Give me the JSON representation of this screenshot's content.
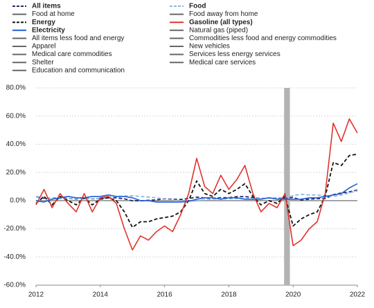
{
  "chart_data": {
    "type": "line",
    "x": [
      2012,
      2012.25,
      2012.5,
      2012.75,
      2013,
      2013.25,
      2013.5,
      2013.75,
      2014,
      2014.25,
      2014.5,
      2014.75,
      2015,
      2015.25,
      2015.5,
      2015.75,
      2016,
      2016.25,
      2016.5,
      2016.75,
      2017,
      2017.25,
      2017.5,
      2017.75,
      2018,
      2018.25,
      2018.5,
      2018.75,
      2019,
      2019.25,
      2019.5,
      2019.75,
      2020,
      2020.25,
      2020.5,
      2020.75,
      2021,
      2021.25,
      2021.5,
      2021.75,
      2022
    ],
    "xlim": [
      2012,
      2022
    ],
    "xticks": [
      2012,
      2014,
      2016,
      2018,
      2020,
      2022
    ],
    "ylim": [
      -60,
      80
    ],
    "yticks": [
      {
        "value": -60,
        "label": "-60.0%"
      },
      {
        "value": -40,
        "label": "-40.0%"
      },
      {
        "value": -20,
        "label": "-20.0%"
      },
      {
        "value": 0,
        "label": "0.0%"
      },
      {
        "value": 20,
        "label": "20.0%"
      },
      {
        "value": 40,
        "label": "40.0%"
      },
      {
        "value": 60,
        "label": "60.0%"
      },
      {
        "value": 80,
        "label": "80.0%"
      }
    ],
    "grid": true,
    "shade_x": [
      2019.72,
      2019.9
    ],
    "series": [
      {
        "name": "All items",
        "color": "#1f2a6b",
        "dash": true,
        "values": [
          2.9,
          1.7,
          1.7,
          1.8,
          1.6,
          1.1,
          2.0,
          1.2,
          1.6,
          2.1,
          2.0,
          1.3,
          -0.1,
          -0.1,
          0.2,
          0.5,
          1.3,
          1.0,
          0.8,
          1.5,
          2.5,
          1.9,
          1.7,
          2.1,
          2.1,
          2.8,
          2.9,
          2.2,
          1.5,
          1.9,
          1.6,
          1.7,
          2.3,
          0.3,
          1.0,
          1.4,
          1.4,
          4.2,
          5.4,
          6.2,
          7.5
        ]
      },
      {
        "name": "Food",
        "color": "#8fb4e3",
        "dash": true,
        "values": [
          3,
          2.5,
          1.5,
          1.5,
          1.5,
          1.4,
          1.5,
          1.3,
          1.4,
          2.5,
          3,
          3.2,
          3.4,
          3,
          2.5,
          2,
          1.2,
          0.5,
          0,
          -0.2,
          -0.2,
          0.5,
          1,
          1.5,
          1.3,
          1.5,
          1.4,
          1.5,
          1.6,
          1.8,
          2,
          2.1,
          3.5,
          4.5,
          4,
          4,
          3.5,
          3,
          4,
          5.5,
          7
        ]
      },
      {
        "name": "Food at home",
        "color": "#666666"
      },
      {
        "name": "Food away from home",
        "color": "#666666"
      },
      {
        "name": "Energy",
        "color": "#111111",
        "dash": true,
        "values": [
          -2,
          3,
          -3,
          3,
          0,
          -3,
          2,
          -3,
          1,
          2,
          0,
          -8,
          -19,
          -15,
          -15,
          -13,
          -12,
          -11,
          -8,
          0,
          14,
          5,
          3,
          8,
          5,
          8,
          12,
          3,
          -3,
          0,
          -2,
          3,
          -18,
          -13,
          -10,
          -8,
          3,
          27,
          25,
          32,
          33
        ]
      },
      {
        "name": "Gasoline (all types)",
        "color": "#e0322b",
        "values": [
          -3,
          8,
          -5,
          5,
          -2,
          -8,
          5,
          -8,
          2,
          3,
          -2,
          -20,
          -35,
          -25,
          -28,
          -22,
          -18,
          -22,
          -10,
          5,
          30,
          10,
          5,
          18,
          8,
          15,
          25,
          5,
          -8,
          -2,
          -5,
          5,
          -32,
          -28,
          -20,
          -15,
          5,
          55,
          42,
          58,
          48
        ]
      },
      {
        "name": "Electricity",
        "color": "#1f5fd6",
        "values": [
          0,
          -1,
          1,
          2,
          3,
          2,
          2,
          3,
          3,
          4,
          3,
          3,
          2,
          0,
          0,
          -1,
          -1,
          -1,
          -1,
          -0.5,
          1,
          2,
          2,
          1,
          2,
          2,
          1,
          1,
          1,
          2,
          1,
          1,
          1,
          1,
          2,
          2,
          3,
          4,
          5,
          9,
          12
        ]
      },
      {
        "name": "Natural gas (piped)",
        "color": "#666666"
      },
      {
        "name": "All items less food and energy",
        "color": "#666666"
      },
      {
        "name": "Commodities less food and energy commodities",
        "color": "#666666"
      },
      {
        "name": "Apparel",
        "color": "#666666"
      },
      {
        "name": "New vehicles",
        "color": "#666666"
      },
      {
        "name": "Medical care commodities",
        "color": "#666666"
      },
      {
        "name": "Services less energy services",
        "color": "#666666"
      },
      {
        "name": "Shelter",
        "color": "#666666"
      },
      {
        "name": "Medical care services",
        "color": "#666666"
      },
      {
        "name": "Education and communication",
        "color": "#666666"
      }
    ]
  }
}
